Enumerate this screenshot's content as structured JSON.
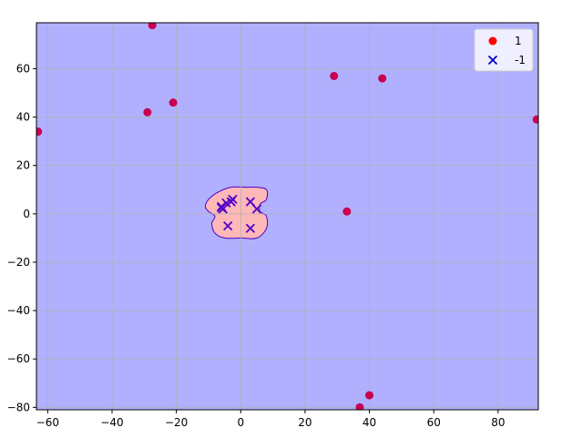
{
  "chart_data": {
    "type": "scatter",
    "title": "",
    "xlabel": "",
    "ylabel": "",
    "xlim": [
      -63.5,
      92.5
    ],
    "ylim": [
      -81,
      79
    ],
    "x_ticks": [
      -60,
      -40,
      -20,
      0,
      20,
      40,
      60,
      80
    ],
    "y_ticks": [
      -80,
      -60,
      -40,
      -20,
      0,
      20,
      40,
      60
    ],
    "x_tick_labels": [
      "−60",
      "−40",
      "−20",
      "0",
      "20",
      "40",
      "60",
      "80"
    ],
    "y_tick_labels": [
      "−80",
      "−60",
      "−40",
      "−20",
      "0",
      "20",
      "40",
      "60"
    ],
    "grid": true,
    "legend_position": "top-right",
    "colors": {
      "background_region": "#b0b0ff",
      "inner_region": "#ffb8b8",
      "positive_marker": "#c80050",
      "negative_marker": "#5000c8",
      "legend_positive": "#ff0000",
      "legend_negative": "#0000cc",
      "grid": "#b0b0b0"
    },
    "series": [
      {
        "name": "1",
        "marker": "circle",
        "points": [
          [
            -27.5,
            78
          ],
          [
            29,
            57
          ],
          [
            44,
            56
          ],
          [
            -29,
            42
          ],
          [
            -21,
            46
          ],
          [
            -63,
            34
          ],
          [
            92,
            39
          ],
          [
            33,
            1
          ],
          [
            40,
            -75
          ],
          [
            37,
            -80
          ]
        ]
      },
      {
        "name": "-1",
        "marker": "x",
        "points": [
          [
            -6,
            3
          ],
          [
            -5.5,
            2
          ],
          [
            -6,
            2.5
          ],
          [
            -4.5,
            4.5
          ],
          [
            -3,
            5
          ],
          [
            -2.5,
            6
          ],
          [
            3,
            5
          ],
          [
            5,
            2
          ],
          [
            -4,
            -5
          ],
          [
            3,
            -6
          ]
        ]
      }
    ],
    "decision_region": {
      "label": "1",
      "boundary": [
        [
          -11,
          3
        ],
        [
          -10,
          6
        ],
        [
          -7,
          9
        ],
        [
          -3,
          11
        ],
        [
          1,
          11
        ],
        [
          5,
          11
        ],
        [
          8,
          10
        ],
        [
          8,
          6
        ],
        [
          6,
          4
        ],
        [
          6,
          1
        ],
        [
          8,
          -1
        ],
        [
          8,
          -6
        ],
        [
          5,
          -10
        ],
        [
          0,
          -10
        ],
        [
          -5,
          -10
        ],
        [
          -8,
          -8
        ],
        [
          -9,
          -4
        ],
        [
          -8,
          -1
        ],
        [
          -10,
          1
        ]
      ]
    }
  }
}
